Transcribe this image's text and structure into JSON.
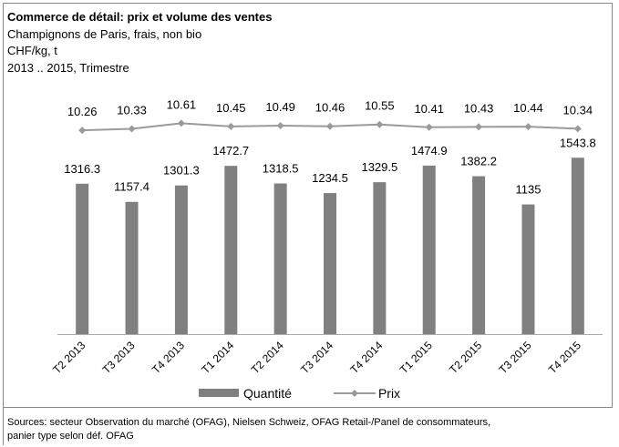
{
  "chart_data": {
    "type": "bar-line",
    "title": "Commerce de détail: prix et volume des ventes",
    "subtitle": [
      "Champignons de Paris, frais, non bio",
      "CHF/kg, t",
      "2013 .. 2015, Trimestre"
    ],
    "categories": [
      "T2 2013",
      "T3 2013",
      "T4 2013",
      "T1 2014",
      "T2 2014",
      "T3 2014",
      "T4 2014",
      "T1 2015",
      "T2 2015",
      "T3 2015",
      "T4 2015"
    ],
    "series": [
      {
        "name": "Quantité",
        "type": "bar",
        "color": "#808080",
        "values": [
          1316.3,
          1157.4,
          1301.3,
          1472.7,
          1318.5,
          1234.5,
          1329.5,
          1474.9,
          1382.2,
          1135,
          1543.8
        ]
      },
      {
        "name": "Prix",
        "type": "line",
        "axis": "y2",
        "color": "#9a9a9a",
        "values": [
          10.26,
          10.33,
          10.61,
          10.45,
          10.49,
          10.46,
          10.55,
          10.41,
          10.43,
          10.44,
          10.34
        ]
      }
    ],
    "ylim": [
      0,
      2000
    ],
    "y2lim": [
      0,
      11.5
    ],
    "legend": "bottom",
    "source": [
      "Sources: secteur Observation du marché (OFAG), Nielsen Schweiz, OFAG Retail-/Panel de consommateurs,",
      "panier type selon déf. OFAG"
    ]
  }
}
